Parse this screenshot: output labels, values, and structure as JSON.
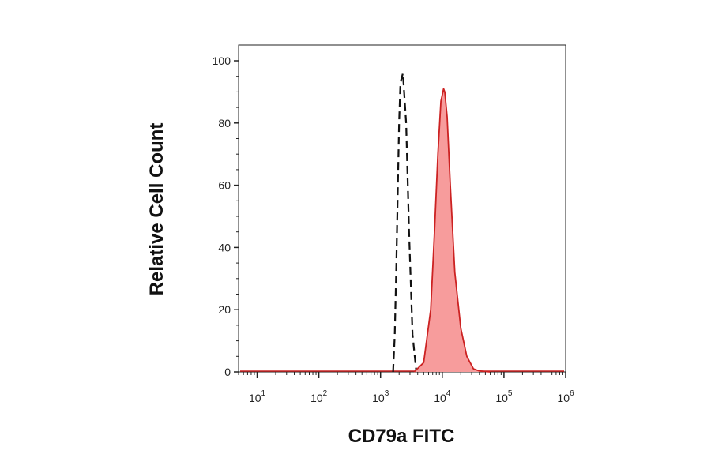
{
  "chart_data": {
    "type": "area",
    "xlabel": "CD79a FITC",
    "ylabel": "Relative Cell Count",
    "x_scale": "log",
    "xlim": [
      5,
      1000000
    ],
    "ylim": [
      0,
      100
    ],
    "y_ticks": [
      {
        "value": 0,
        "label": "0"
      },
      {
        "value": 20,
        "label": "20"
      },
      {
        "value": 40,
        "label": "40"
      },
      {
        "value": 60,
        "label": "60"
      },
      {
        "value": 80,
        "label": "80"
      },
      {
        "value": 100,
        "label": "100"
      }
    ],
    "x_ticks": [
      {
        "value": 10,
        "base": "10",
        "exp": "1"
      },
      {
        "value": 100,
        "base": "10",
        "exp": "2"
      },
      {
        "value": 1000,
        "base": "10",
        "exp": "3"
      },
      {
        "value": 10000,
        "base": "10",
        "exp": "4"
      },
      {
        "value": 100000,
        "base": "10",
        "exp": "5"
      },
      {
        "value": 1000000,
        "base": "10",
        "exp": "6"
      }
    ],
    "grid": false,
    "series": [
      {
        "style": "dashed",
        "color": "#111111",
        "fill": "none",
        "x": [
          1600,
          1700,
          1800,
          1900,
          2000,
          2100,
          2300,
          2600,
          2900,
          3300,
          3800
        ],
        "y": [
          0,
          12,
          33,
          58,
          80,
          93,
          96,
          80,
          45,
          12,
          0
        ]
      },
      {
        "style": "solid",
        "color": "#cc2222",
        "fill": "#f79c9c",
        "x": [
          3500,
          5000,
          6500,
          7500,
          8500,
          9500,
          10500,
          11000,
          12000,
          13500,
          16000,
          20000,
          25000,
          32000,
          40000,
          60000
        ],
        "y": [
          0,
          3,
          20,
          45,
          70,
          87,
          91,
          90,
          82,
          60,
          32,
          14,
          5,
          1,
          0.3,
          0
        ]
      }
    ],
    "baseline_color": "#cc2222"
  }
}
